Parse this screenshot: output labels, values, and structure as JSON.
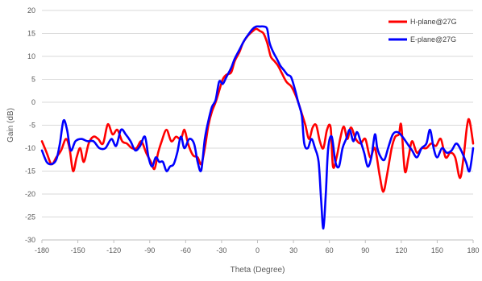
{
  "chart_data": {
    "type": "line",
    "title": "",
    "xlabel": "Theta (Degree)",
    "ylabel": "Gain (dB)",
    "xlim": [
      -180,
      180
    ],
    "ylim": [
      -30,
      20
    ],
    "x_ticks": [
      -180,
      -150,
      -120,
      -90,
      -60,
      -30,
      0,
      30,
      60,
      90,
      120,
      150,
      180
    ],
    "y_ticks": [
      20,
      15,
      10,
      5,
      0,
      -5,
      -10,
      -15,
      -20,
      -25,
      -30
    ],
    "grid": "horizontal",
    "legend_position": "top-right",
    "series": [
      {
        "name": "H-plane@27G",
        "color": "#ff0000",
        "points": [
          [
            -180,
            -8.5
          ],
          [
            -176,
            -11
          ],
          [
            -172,
            -13.5
          ],
          [
            -168,
            -12
          ],
          [
            -164,
            -10.5
          ],
          [
            -160,
            -8
          ],
          [
            -157,
            -10
          ],
          [
            -154,
            -15
          ],
          [
            -151,
            -12
          ],
          [
            -148,
            -10
          ],
          [
            -145,
            -13
          ],
          [
            -141,
            -9
          ],
          [
            -137,
            -7.5
          ],
          [
            -133,
            -8
          ],
          [
            -129,
            -9
          ],
          [
            -125,
            -4.8
          ],
          [
            -121,
            -7
          ],
          [
            -117,
            -6
          ],
          [
            -113,
            -8.5
          ],
          [
            -109,
            -9
          ],
          [
            -105,
            -10
          ],
          [
            -101,
            -10
          ],
          [
            -97,
            -8.5
          ],
          [
            -93,
            -11
          ],
          [
            -89,
            -13
          ],
          [
            -86,
            -14.5
          ],
          [
            -83,
            -11
          ],
          [
            -80,
            -8.5
          ],
          [
            -76,
            -6
          ],
          [
            -72,
            -8.5
          ],
          [
            -68,
            -7.5
          ],
          [
            -64,
            -8
          ],
          [
            -61,
            -6
          ],
          [
            -58,
            -9
          ],
          [
            -54,
            -11.5
          ],
          [
            -50,
            -12
          ],
          [
            -47,
            -13.5
          ],
          [
            -44,
            -10
          ],
          [
            -41,
            -5
          ],
          [
            -38,
            -2
          ],
          [
            -35,
            0
          ],
          [
            -32,
            2.5
          ],
          [
            -29,
            5
          ],
          [
            -26,
            6
          ],
          [
            -22,
            6.5
          ],
          [
            -19,
            9
          ],
          [
            -15,
            11
          ],
          [
            -12,
            13
          ],
          [
            -8,
            14.5
          ],
          [
            -4,
            15.5
          ],
          [
            -1,
            16
          ],
          [
            2,
            15.5
          ],
          [
            5,
            15
          ],
          [
            8,
            13
          ],
          [
            11,
            10
          ],
          [
            14,
            9
          ],
          [
            17,
            8
          ],
          [
            20,
            6.5
          ],
          [
            24,
            4.5
          ],
          [
            28,
            3.5
          ],
          [
            31,
            2
          ],
          [
            34,
            0
          ],
          [
            37,
            -2.5
          ],
          [
            40,
            -5
          ],
          [
            43,
            -8
          ],
          [
            46,
            -5.5
          ],
          [
            49,
            -5
          ],
          [
            52,
            -8.5
          ],
          [
            55,
            -10
          ],
          [
            58,
            -6
          ],
          [
            61,
            -5.5
          ],
          [
            63,
            -14
          ],
          [
            66,
            -12
          ],
          [
            69,
            -8
          ],
          [
            72,
            -5.3
          ],
          [
            75,
            -8
          ],
          [
            78,
            -5.5
          ],
          [
            82,
            -8
          ],
          [
            86,
            -9
          ],
          [
            90,
            -8
          ],
          [
            94,
            -12
          ],
          [
            98,
            -10
          ],
          [
            102,
            -16
          ],
          [
            105,
            -19.5
          ],
          [
            108,
            -16
          ],
          [
            112,
            -10
          ],
          [
            115,
            -7.5
          ],
          [
            118,
            -7
          ],
          [
            120,
            -5
          ],
          [
            123,
            -15
          ],
          [
            126,
            -12
          ],
          [
            129,
            -8.5
          ],
          [
            133,
            -11
          ],
          [
            137,
            -10
          ],
          [
            141,
            -10
          ],
          [
            145,
            -9
          ],
          [
            149,
            -9.5
          ],
          [
            153,
            -8
          ],
          [
            157,
            -12
          ],
          [
            161,
            -11
          ],
          [
            165,
            -12
          ],
          [
            169,
            -16.5
          ],
          [
            172,
            -12
          ],
          [
            175,
            -5
          ],
          [
            177,
            -4
          ],
          [
            180,
            -9
          ]
        ]
      },
      {
        "name": "E-plane@27G",
        "color": "#0000ff",
        "points": [
          [
            -180,
            -10.5
          ],
          [
            -176,
            -13
          ],
          [
            -172,
            -13.5
          ],
          [
            -168,
            -12.5
          ],
          [
            -165,
            -9
          ],
          [
            -162,
            -4
          ],
          [
            -159,
            -6
          ],
          [
            -156,
            -10.5
          ],
          [
            -152,
            -8.5
          ],
          [
            -147,
            -8
          ],
          [
            -142,
            -8.5
          ],
          [
            -137,
            -8.5
          ],
          [
            -132,
            -10
          ],
          [
            -127,
            -10
          ],
          [
            -122,
            -8
          ],
          [
            -118,
            -9.5
          ],
          [
            -114,
            -6
          ],
          [
            -110,
            -7
          ],
          [
            -106,
            -8.5
          ],
          [
            -102,
            -10.5
          ],
          [
            -98,
            -9.5
          ],
          [
            -94,
            -7.5
          ],
          [
            -91,
            -12
          ],
          [
            -88,
            -14
          ],
          [
            -85,
            -12
          ],
          [
            -82,
            -13
          ],
          [
            -79,
            -13
          ],
          [
            -76,
            -15
          ],
          [
            -73,
            -14
          ],
          [
            -70,
            -13.5
          ],
          [
            -67,
            -11
          ],
          [
            -64,
            -7.5
          ],
          [
            -61,
            -10
          ],
          [
            -57,
            -8
          ],
          [
            -53,
            -9
          ],
          [
            -50,
            -13
          ],
          [
            -47,
            -14.8
          ],
          [
            -44,
            -8
          ],
          [
            -41,
            -4
          ],
          [
            -38,
            -1
          ],
          [
            -35,
            0.5
          ],
          [
            -32,
            4.5
          ],
          [
            -29,
            4
          ],
          [
            -26,
            5.5
          ],
          [
            -22,
            7.5
          ],
          [
            -19,
            9.5
          ],
          [
            -15,
            11.5
          ],
          [
            -11,
            13.5
          ],
          [
            -7,
            15
          ],
          [
            -4,
            16
          ],
          [
            -1,
            16.5
          ],
          [
            2,
            16.5
          ],
          [
            5,
            16.5
          ],
          [
            8,
            16
          ],
          [
            10,
            13
          ],
          [
            13,
            11
          ],
          [
            16,
            9.5
          ],
          [
            19,
            8
          ],
          [
            22,
            7
          ],
          [
            25,
            6
          ],
          [
            28,
            5.5
          ],
          [
            31,
            3
          ],
          [
            34,
            0
          ],
          [
            37,
            -3
          ],
          [
            39,
            -9
          ],
          [
            42,
            -10
          ],
          [
            45,
            -8
          ],
          [
            48,
            -10
          ],
          [
            51,
            -13
          ],
          [
            53,
            -21
          ],
          [
            55,
            -27.5
          ],
          [
            57,
            -20
          ],
          [
            59,
            -10
          ],
          [
            62,
            -7.5
          ],
          [
            65,
            -13
          ],
          [
            68,
            -14
          ],
          [
            71,
            -10
          ],
          [
            74,
            -8
          ],
          [
            77,
            -6
          ],
          [
            80,
            -8.5
          ],
          [
            83,
            -6.5
          ],
          [
            86,
            -8.5
          ],
          [
            89,
            -11
          ],
          [
            92,
            -14
          ],
          [
            95,
            -12
          ],
          [
            98,
            -7
          ],
          [
            100,
            -10
          ],
          [
            103,
            -12
          ],
          [
            106,
            -12.5
          ],
          [
            109,
            -10
          ],
          [
            113,
            -7
          ],
          [
            117,
            -6.5
          ],
          [
            121,
            -7.5
          ],
          [
            125,
            -9
          ],
          [
            129,
            -10.5
          ],
          [
            133,
            -12
          ],
          [
            137,
            -10
          ],
          [
            141,
            -9
          ],
          [
            144,
            -6
          ],
          [
            147,
            -10
          ],
          [
            150,
            -12
          ],
          [
            154,
            -10
          ],
          [
            158,
            -11
          ],
          [
            162,
            -10.5
          ],
          [
            166,
            -9
          ],
          [
            170,
            -10.5
          ],
          [
            174,
            -13
          ],
          [
            177,
            -15
          ],
          [
            180,
            -10
          ]
        ]
      }
    ]
  }
}
